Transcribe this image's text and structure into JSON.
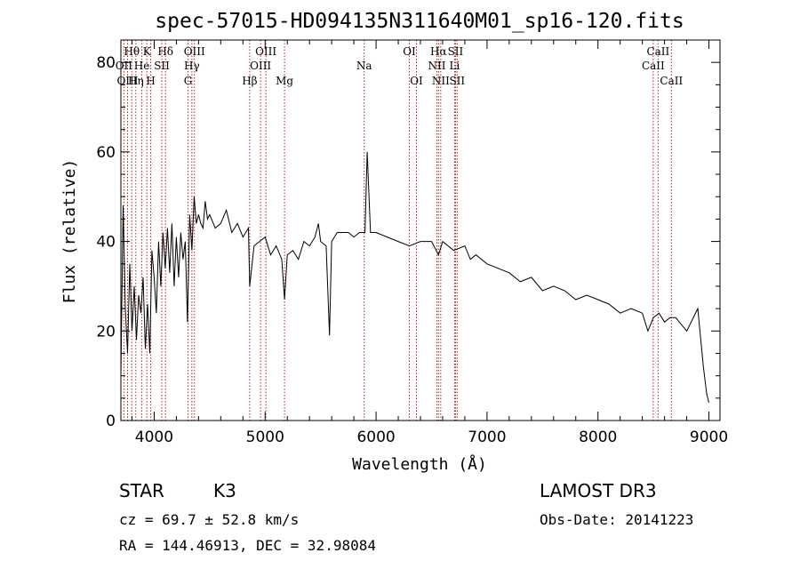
{
  "chart_data": {
    "type": "line",
    "title": "spec-57015-HD094135N311640M01_sp16-120.fits",
    "xlabel": "Wavelength (Å)",
    "ylabel": "Flux (relative)",
    "xlim": [
      3700,
      9100
    ],
    "ylim": [
      0,
      85
    ],
    "xticks": [
      4000,
      5000,
      6000,
      7000,
      8000,
      9000
    ],
    "yticks": [
      0,
      20,
      40,
      60,
      80
    ],
    "series": [
      {
        "name": "flux",
        "x": [
          3700,
          3720,
          3740,
          3760,
          3780,
          3800,
          3820,
          3840,
          3860,
          3880,
          3900,
          3920,
          3940,
          3960,
          3980,
          4000,
          4020,
          4040,
          4060,
          4080,
          4100,
          4120,
          4140,
          4160,
          4180,
          4200,
          4220,
          4240,
          4260,
          4280,
          4300,
          4320,
          4340,
          4360,
          4380,
          4400,
          4420,
          4440,
          4460,
          4480,
          4500,
          4550,
          4600,
          4650,
          4700,
          4750,
          4800,
          4850,
          4861,
          4900,
          4950,
          5000,
          5050,
          5100,
          5150,
          5175,
          5200,
          5250,
          5300,
          5350,
          5400,
          5450,
          5480,
          5500,
          5550,
          5580,
          5600,
          5650,
          5700,
          5750,
          5800,
          5850,
          5900,
          5920,
          5950,
          6000,
          6100,
          6200,
          6300,
          6400,
          6500,
          6563,
          6600,
          6700,
          6800,
          6850,
          6900,
          7000,
          7100,
          7200,
          7300,
          7400,
          7500,
          7600,
          7700,
          7800,
          7900,
          8000,
          8100,
          8200,
          8300,
          8400,
          8450,
          8500,
          8550,
          8600,
          8650,
          8700,
          8800,
          8900,
          8950,
          8980,
          9000
        ],
        "values": [
          10,
          48,
          25,
          15,
          35,
          20,
          30,
          18,
          28,
          24,
          32,
          16,
          26,
          15,
          38,
          32,
          24,
          40,
          30,
          42,
          34,
          43,
          33,
          44,
          30,
          41,
          32,
          42,
          36,
          40,
          22,
          46,
          38,
          50,
          44,
          46,
          44,
          43,
          49,
          45,
          46,
          43,
          44,
          47,
          42,
          44,
          41,
          43,
          30,
          39,
          40,
          41,
          37,
          39,
          36,
          27,
          37,
          38,
          36,
          40,
          39,
          41,
          44,
          40,
          39,
          19,
          40,
          42,
          42,
          42,
          41,
          42,
          42,
          60,
          42,
          42,
          41,
          40,
          39,
          40,
          40,
          37,
          40,
          38,
          39,
          36,
          37,
          35,
          34,
          33,
          31,
          32,
          29,
          30,
          29,
          27,
          28,
          27,
          26,
          24,
          25,
          24,
          20,
          23,
          24,
          22,
          23,
          23,
          20,
          25,
          12,
          6,
          4
        ]
      }
    ],
    "spectral_lines": [
      {
        "label": "Hθ",
        "x": 3798,
        "row": 1
      },
      {
        "label": "OII",
        "x": 3727,
        "row": 2
      },
      {
        "label": "OIII",
        "x": 3760,
        "row": 3
      },
      {
        "label": "K",
        "x": 3934,
        "row": 1
      },
      {
        "label": "He",
        "x": 3889,
        "row": 2
      },
      {
        "label": "Hη",
        "x": 3835,
        "row": 3
      },
      {
        "label": "Hδ",
        "x": 4102,
        "row": 1
      },
      {
        "label": "SII",
        "x": 4069,
        "row": 2
      },
      {
        "label": "H",
        "x": 3969,
        "row": 3
      },
      {
        "label": "OIII",
        "x": 4363,
        "row": 1
      },
      {
        "label": "Hγ",
        "x": 4340,
        "row": 2
      },
      {
        "label": "G",
        "x": 4305,
        "row": 3
      },
      {
        "label": "OIII",
        "x": 5007,
        "row": 1
      },
      {
        "label": "OIII",
        "x": 4959,
        "row": 2
      },
      {
        "label": "Hβ",
        "x": 4861,
        "row": 3
      },
      {
        "label": "Mg",
        "x": 5175,
        "row": 3
      },
      {
        "label": "Na",
        "x": 5893,
        "row": 2
      },
      {
        "label": "OI",
        "x": 6300,
        "row": 1
      },
      {
        "label": "OI",
        "x": 6364,
        "row": 3
      },
      {
        "label": "Hα",
        "x": 6563,
        "row": 1
      },
      {
        "label": "SII",
        "x": 6716,
        "row": 1
      },
      {
        "label": "NII",
        "x": 6548,
        "row": 2
      },
      {
        "label": "Li",
        "x": 6708,
        "row": 2
      },
      {
        "label": "NII",
        "x": 6583,
        "row": 3
      },
      {
        "label": "SII",
        "x": 6731,
        "row": 3
      },
      {
        "label": "CaII",
        "x": 8542,
        "row": 1
      },
      {
        "label": "CaII",
        "x": 8498,
        "row": 2
      },
      {
        "label": "CaII",
        "x": 8662,
        "row": 3
      }
    ]
  },
  "info": {
    "object_class": "STAR",
    "subclass": "K3",
    "survey": "LAMOST DR3",
    "cz": "cz = 69.7 ± 52.8 km/s",
    "obs_date": "Obs-Date: 20141223",
    "coords": "RA = 144.46913, DEC =  32.98084"
  },
  "colors": {
    "line_marker": "#b22222",
    "spectrum": "#000000"
  }
}
